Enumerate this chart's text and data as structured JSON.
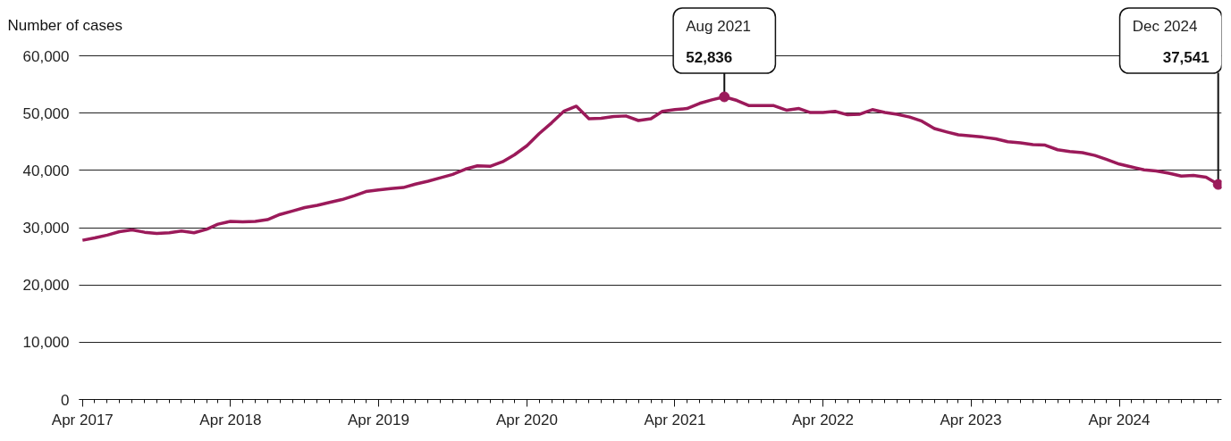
{
  "chart_data": {
    "type": "line",
    "ylabel": "Number of cases",
    "x": [
      "2017-04",
      "2017-05",
      "2017-06",
      "2017-07",
      "2017-08",
      "2017-09",
      "2017-10",
      "2017-11",
      "2017-12",
      "2018-01",
      "2018-02",
      "2018-03",
      "2018-04",
      "2018-05",
      "2018-06",
      "2018-07",
      "2018-08",
      "2018-09",
      "2018-10",
      "2018-11",
      "2018-12",
      "2019-01",
      "2019-02",
      "2019-03",
      "2019-04",
      "2019-05",
      "2019-06",
      "2019-07",
      "2019-08",
      "2019-09",
      "2019-10",
      "2019-11",
      "2019-12",
      "2020-01",
      "2020-02",
      "2020-03",
      "2020-04",
      "2020-05",
      "2020-06",
      "2020-07",
      "2020-08",
      "2020-09",
      "2020-10",
      "2020-11",
      "2020-12",
      "2021-01",
      "2021-02",
      "2021-03",
      "2021-04",
      "2021-05",
      "2021-06",
      "2021-07",
      "2021-08",
      "2021-09",
      "2021-10",
      "2021-11",
      "2021-12",
      "2022-01",
      "2022-02",
      "2022-03",
      "2022-04",
      "2022-05",
      "2022-06",
      "2022-07",
      "2022-08",
      "2022-09",
      "2022-10",
      "2022-11",
      "2022-12",
      "2023-01",
      "2023-02",
      "2023-03",
      "2023-04",
      "2023-05",
      "2023-06",
      "2023-07",
      "2023-08",
      "2023-09",
      "2023-10",
      "2023-11",
      "2023-12",
      "2024-01",
      "2024-02",
      "2024-03",
      "2024-04",
      "2024-05",
      "2024-06",
      "2024-07",
      "2024-08",
      "2024-09",
      "2024-10",
      "2024-11",
      "2024-12"
    ],
    "series": [
      {
        "color": "#9b1a5a",
        "values": [
          27800,
          28200,
          28700,
          29300,
          29600,
          29200,
          29000,
          29100,
          29400,
          29100,
          29700,
          30600,
          31100,
          31000,
          31100,
          31400,
          32300,
          32900,
          33500,
          33900,
          34400,
          34900,
          35600,
          36300,
          36600,
          36800,
          37000,
          37600,
          38100,
          38700,
          39300,
          40200,
          40800,
          40700,
          41500,
          42700,
          44300,
          46400,
          48300,
          50300,
          51200,
          49000,
          49100,
          49400,
          49500,
          48700,
          49000,
          50300,
          50600,
          50800,
          51700,
          52300,
          52836,
          52200,
          51300,
          51300,
          51300,
          50500,
          50800,
          50100,
          50100,
          50300,
          49700,
          49800,
          50600,
          50100,
          49800,
          49300,
          48600,
          47300,
          46700,
          46200,
          46000,
          45800,
          45500,
          45000,
          44800,
          44500,
          44400,
          43600,
          43300,
          43100,
          42600,
          41900,
          41100,
          40600,
          40100,
          39900,
          39500,
          39000,
          39100,
          38800,
          37541
        ],
        "value_labels": [
          null,
          null,
          null,
          null,
          null,
          null,
          null,
          null,
          null,
          null,
          null,
          null,
          null,
          null,
          null,
          null,
          null,
          null,
          null,
          null,
          null,
          null,
          null,
          null,
          null,
          null,
          null,
          null,
          null,
          null,
          null,
          null,
          null,
          null,
          null,
          null,
          null,
          null,
          null,
          null,
          null,
          null,
          null,
          null,
          null,
          null,
          null,
          null,
          null,
          null,
          null,
          null,
          "52,836",
          null,
          null,
          null,
          null,
          null,
          null,
          null,
          null,
          null,
          null,
          null,
          null,
          null,
          null,
          null,
          null,
          null,
          null,
          null,
          null,
          null,
          null,
          null,
          null,
          null,
          null,
          null,
          null,
          null,
          null,
          null,
          null,
          null,
          null,
          null,
          null,
          null,
          null,
          null,
          "37,541"
        ]
      }
    ],
    "annotations": [
      "Aug 2021",
      "Dec 2024"
    ],
    "xlim": [
      "2017-04",
      "2024-12"
    ],
    "xticks": [
      {
        "value": "2017-04",
        "label": "Apr 2017"
      },
      {
        "value": "2018-04",
        "label": "Apr 2018"
      },
      {
        "value": "2019-04",
        "label": "Apr 2019"
      },
      {
        "value": "2020-04",
        "label": "Apr 2020"
      },
      {
        "value": "2021-04",
        "label": "Apr 2021"
      },
      {
        "value": "2022-04",
        "label": "Apr 2022"
      },
      {
        "value": "2023-04",
        "label": "Apr 2023"
      },
      {
        "value": "2024-04",
        "label": "Apr 2024"
      }
    ],
    "ylim": [
      0,
      60000
    ],
    "yticks": [
      0,
      {
        "value": 10000,
        "label": "10,000"
      },
      {
        "value": 20000,
        "label": "20,000"
      },
      {
        "value": 30000,
        "label": "30,000"
      },
      {
        "value": 40000,
        "label": "40,000"
      },
      {
        "value": 50000,
        "label": "50,000"
      },
      {
        "value": 60000,
        "label": "60,000"
      }
    ],
    "grid": "y",
    "marker": "none",
    "line_style": "solid"
  }
}
